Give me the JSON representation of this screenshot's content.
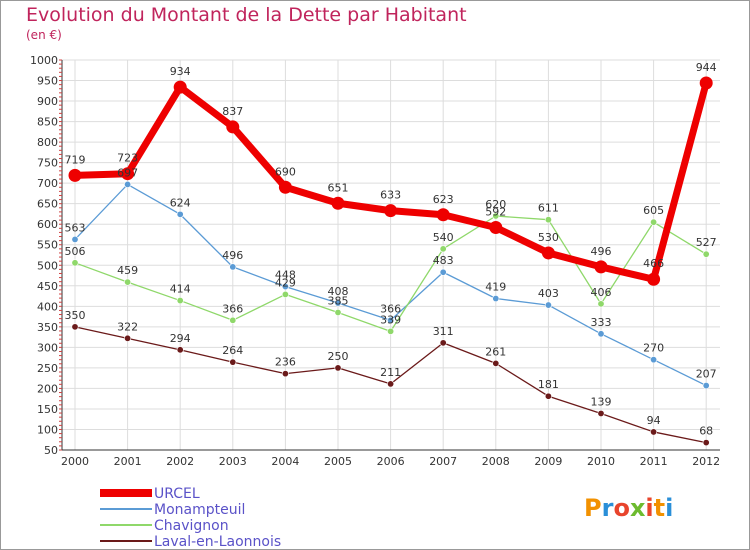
{
  "chart_data": {
    "type": "line",
    "title": "Evolution du Montant de la Dette par Habitant",
    "subtitle": "(en €)",
    "x": [
      "2000",
      "2001",
      "2002",
      "2003",
      "2004",
      "2005",
      "2006",
      "2007",
      "2008",
      "2009",
      "2010",
      "2011",
      "2012"
    ],
    "ylim": [
      50,
      1000
    ],
    "yticks": [
      50,
      100,
      150,
      200,
      250,
      300,
      350,
      400,
      450,
      500,
      550,
      600,
      650,
      700,
      750,
      800,
      850,
      900,
      950,
      1000
    ],
    "grid": true,
    "legend": "bottom-left",
    "series": [
      {
        "name": "URCEL",
        "color": "#ee0000",
        "values": [
          719,
          723,
          934,
          837,
          690,
          651,
          633,
          623,
          592,
          530,
          496,
          466,
          944
        ]
      },
      {
        "name": "Monampteuil",
        "color": "#5b9bd5",
        "values": [
          563,
          697,
          624,
          496,
          448,
          408,
          366,
          483,
          419,
          403,
          333,
          270,
          207
        ]
      },
      {
        "name": "Chavignon",
        "color": "#8fd86a",
        "values": [
          506,
          459,
          414,
          366,
          429,
          385,
          339,
          540,
          620,
          611,
          406,
          605,
          527
        ]
      },
      {
        "name": "Laval-en-Laonnois",
        "color": "#6b1a1a",
        "values": [
          350,
          322,
          294,
          264,
          236,
          250,
          211,
          311,
          261,
          181,
          139,
          94,
          68
        ]
      }
    ]
  },
  "brand": {
    "text": "Proxiti",
    "icon": "proxiti-logo"
  }
}
